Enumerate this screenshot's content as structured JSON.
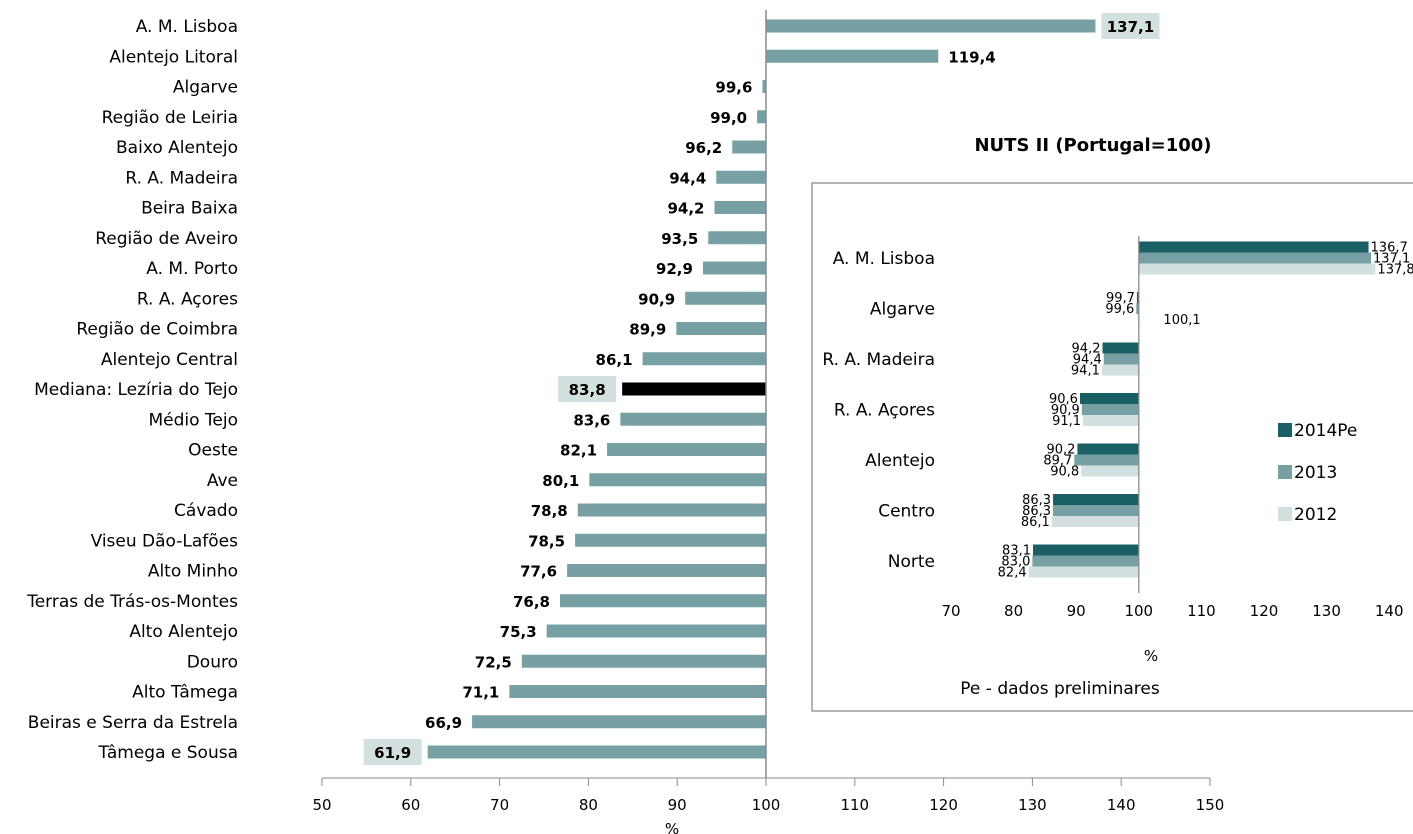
{
  "chart_data": [
    {
      "type": "bar",
      "orientation": "horizontal",
      "categories": [
        "A. M. Lisboa",
        "Alentejo Litoral",
        "Algarve",
        "Região de Leiria",
        "Baixo Alentejo",
        "R. A. Madeira",
        "Beira Baixa",
        "Região de Aveiro",
        "A. M. Porto",
        "R. A. Açores",
        "Região de Coimbra",
        "Alentejo Central",
        "Mediana: Lezíria do Tejo",
        "Médio Tejo",
        "Oeste",
        "Ave",
        "Cávado",
        "Viseu Dão-Lafões",
        "Alto Minho",
        "Terras de Trás-os-Montes",
        "Alto Alentejo",
        "Douro",
        "Alto Tâmega",
        "Beiras e Serra da Estrela",
        "Tâmega e Sousa"
      ],
      "values": [
        137.1,
        119.4,
        99.6,
        99.0,
        96.2,
        94.4,
        94.2,
        93.5,
        92.9,
        90.9,
        89.9,
        86.1,
        83.8,
        83.6,
        82.1,
        80.1,
        78.8,
        78.5,
        77.6,
        76.8,
        75.3,
        72.5,
        71.1,
        66.9,
        61.9
      ],
      "value_labels": [
        "137,1",
        "119,4",
        "99,6",
        "99,0",
        "96,2",
        "94,4",
        "94,2",
        "93,5",
        "92,9",
        "90,9",
        "89,9",
        "86,1",
        "83,8",
        "83,6",
        "82,1",
        "80,1",
        "78,8",
        "78,5",
        "77,6",
        "76,8",
        "75,3",
        "72,5",
        "71,1",
        "66,9",
        "61,9"
      ],
      "highlighted_labels": [
        "A. M. Lisboa",
        "Mediana: Lezíria do Tejo",
        "Tâmega e Sousa"
      ],
      "median_category": "Mediana: Lezíria do Tejo",
      "baseline": 100,
      "xlim": [
        50,
        150
      ],
      "xticks": [
        "50",
        "60",
        "70",
        "80",
        "90",
        "100",
        "110",
        "120",
        "130",
        "140",
        "150"
      ],
      "xlabel": "%",
      "colors": {
        "bar": "#76a0a3",
        "median": "#000000",
        "highlight": "#d2e0df",
        "axis": "#8a8a8a"
      }
    },
    {
      "type": "bar",
      "orientation": "horizontal",
      "title": "NUTS II (Portugal=100)",
      "categories": [
        "A. M. Lisboa",
        "Algarve",
        "R. A. Madeira",
        "R. A. Açores",
        "Alentejo",
        "Centro",
        "Norte"
      ],
      "series": [
        {
          "name": "2014Pe",
          "color": "#1a5f64",
          "values": [
            136.7,
            99.7,
            94.2,
            90.6,
            90.2,
            86.3,
            83.1
          ],
          "labels": [
            "136,7",
            "99,7",
            "94,2",
            "90,6",
            "90,2",
            "86,3",
            "83,1"
          ]
        },
        {
          "name": "2013",
          "color": "#76a0a3",
          "values": [
            137.1,
            99.6,
            94.4,
            90.9,
            89.7,
            86.3,
            83.0
          ],
          "labels": [
            "137,1",
            "99,6",
            "94,4",
            "90,9",
            "89,7",
            "86,3",
            "83,0"
          ]
        },
        {
          "name": "2012",
          "color": "#d2e0df",
          "values": [
            137.8,
            100.1,
            94.1,
            91.1,
            90.8,
            86.1,
            82.4
          ],
          "labels": [
            "137,8",
            "100,1",
            "94,1",
            "91,1",
            "90,8",
            "86,1",
            "82,4"
          ]
        }
      ],
      "baseline": 100,
      "xlim": [
        70,
        140
      ],
      "xticks": [
        "70",
        "80",
        "90",
        "100",
        "110",
        "120",
        "130",
        "140"
      ],
      "xlabel": "%",
      "legend_position": "right",
      "footnote": "Pe - dados preliminares"
    }
  ]
}
